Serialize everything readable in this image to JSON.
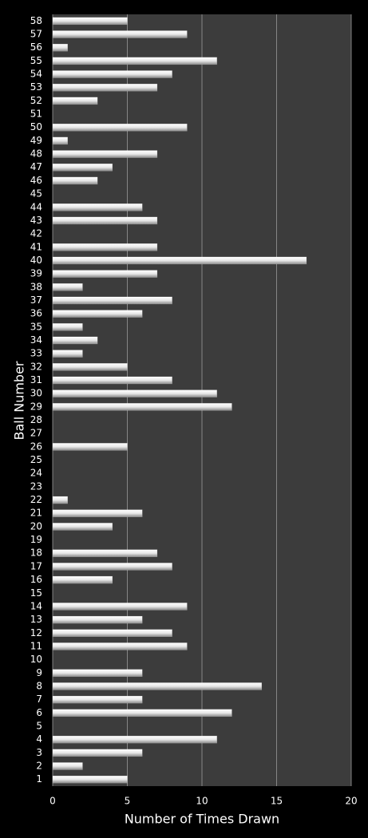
{
  "chart_data": {
    "type": "bar",
    "orientation": "horizontal",
    "x_label": "Number of Times Drawn",
    "y_label": "Ball Number",
    "categories": [
      "1",
      "2",
      "3",
      "4",
      "5",
      "6",
      "7",
      "8",
      "9",
      "10",
      "11",
      "12",
      "13",
      "14",
      "15",
      "16",
      "17",
      "18",
      "19",
      "20",
      "21",
      "22",
      "23",
      "24",
      "25",
      "26",
      "27",
      "28",
      "29",
      "30",
      "31",
      "32",
      "33",
      "34",
      "35",
      "36",
      "37",
      "38",
      "39",
      "40",
      "41",
      "42",
      "43",
      "44",
      "45",
      "46",
      "47",
      "48",
      "49",
      "50",
      "51",
      "52",
      "53",
      "54",
      "55",
      "56",
      "57",
      "58"
    ],
    "values": [
      5,
      2,
      6,
      11,
      0,
      12,
      6,
      14,
      6,
      0,
      9,
      8,
      6,
      9,
      0,
      4,
      8,
      7,
      0,
      4,
      6,
      1,
      0,
      0,
      0,
      5,
      0,
      0,
      12,
      11,
      8,
      5,
      2,
      3,
      2,
      6,
      8,
      2,
      7,
      17,
      7,
      0,
      7,
      6,
      0,
      3,
      4,
      7,
      1,
      9,
      0,
      3,
      7,
      8,
      11,
      1,
      9,
      5
    ],
    "color": "#ffffff",
    "xlim": [
      0,
      20
    ],
    "xticks": [
      0,
      5,
      10,
      15,
      20
    ],
    "grid": true
  }
}
